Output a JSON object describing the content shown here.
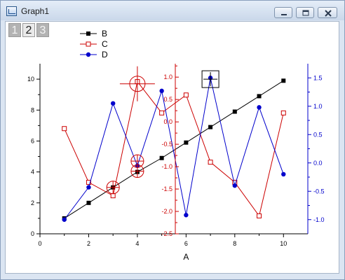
{
  "window": {
    "title": "Graph1",
    "icons": {
      "app": "graph-app-icon",
      "minimize": "minimize-icon",
      "maximize": "maximize-icon",
      "close": "close-icon"
    }
  },
  "layers": [
    {
      "label": "1",
      "active": false
    },
    {
      "label": "2",
      "active": true
    },
    {
      "label": "3",
      "active": false
    }
  ],
  "chart_data": {
    "type": "line",
    "xlabel": "A",
    "xlim": [
      0,
      11
    ],
    "x_ticks": [
      "0",
      "2",
      "4",
      "6",
      "8",
      "10"
    ],
    "left_axis": {
      "ylim": [
        0,
        11
      ],
      "ticks": [
        "0",
        "2",
        "4",
        "6",
        "8",
        "10"
      ],
      "color": "#000000"
    },
    "red_axis": {
      "ylim": [
        -2.5,
        1.3
      ],
      "ticks": [
        "1.0",
        "0.5",
        "0.0",
        "-0.5",
        "-1.0",
        "-1.5",
        "-2.0",
        "-2.5"
      ],
      "color": "#cc0000"
    },
    "right_axis": {
      "ylim": [
        -1.25,
        1.75
      ],
      "ticks": [
        "1.5",
        "1.0",
        "0.5",
        "0.0",
        "-0.5",
        "-1.0"
      ],
      "color": "#0000cc"
    },
    "grid": false,
    "legend_position": "top-left",
    "series": [
      {
        "name": "B",
        "axis": "left",
        "color": "#000000",
        "marker": "filled-square",
        "x": [
          1,
          2,
          3,
          4,
          5,
          6,
          7,
          8,
          9,
          10
        ],
        "y": [
          1,
          2,
          3,
          4,
          4.9,
          5.9,
          6.9,
          7.9,
          8.9,
          9.9
        ]
      },
      {
        "name": "C",
        "axis": "red",
        "color": "#cc0000",
        "marker": "open-square",
        "x": [
          1,
          2,
          3,
          4,
          5,
          6,
          7,
          8,
          9,
          10
        ],
        "y": [
          -0.15,
          -1.35,
          -1.65,
          0.9,
          0.2,
          0.6,
          -0.9,
          -1.35,
          -2.1,
          0.2
        ]
      },
      {
        "name": "D",
        "axis": "right",
        "color": "#0000cc",
        "marker": "filled-circle",
        "x": [
          1,
          2,
          3,
          4,
          5,
          6,
          7,
          8,
          9,
          10
        ],
        "y": [
          -1.0,
          -0.43,
          1.05,
          -0.05,
          1.27,
          -0.92,
          1.5,
          -0.4,
          0.98,
          -0.2
        ]
      }
    ],
    "annotations": [
      {
        "type": "circle-cross",
        "x": 4.0,
        "left_y": 9.7,
        "color": "#cc0000",
        "size": "large"
      },
      {
        "type": "circle-cross",
        "x": 3.0,
        "left_y": 3.0,
        "color": "#cc0000",
        "size": "small"
      },
      {
        "type": "circle-cross",
        "x": 4.0,
        "left_y": 4.05,
        "color": "#cc0000",
        "size": "small"
      },
      {
        "type": "circle-cross",
        "x": 4.0,
        "left_y": 4.7,
        "color": "#cc0000",
        "size": "small"
      },
      {
        "type": "box-cross",
        "x": 7.0,
        "left_y": 10.0,
        "color": "#000000",
        "size": "small"
      }
    ]
  }
}
